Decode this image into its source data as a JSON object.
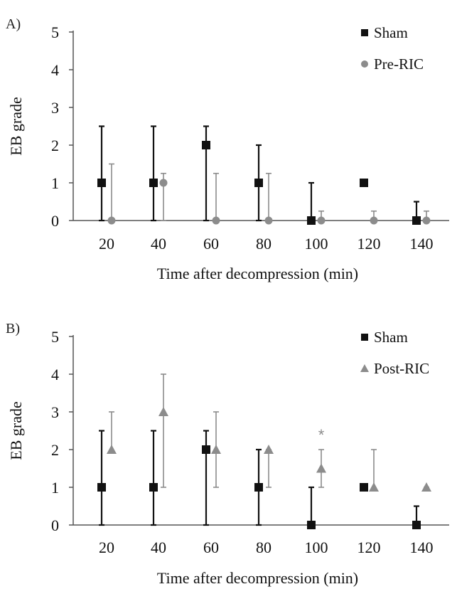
{
  "colors": {
    "sham": "#111111",
    "pre_ric": "#8c8c8c",
    "post_ric": "#8c8c8c",
    "axis": "#555555"
  },
  "chart_data": [
    {
      "panel_label": "A)",
      "type": "scatter",
      "x": [
        20,
        40,
        60,
        80,
        100,
        120,
        140
      ],
      "xlabel": "Time after decompression (min)",
      "ylabel": "EB grade",
      "ylim": [
        0,
        5
      ],
      "yticks": [
        0,
        1,
        2,
        3,
        4,
        5
      ],
      "xticks": [
        "20",
        "40",
        "60",
        "80",
        "100",
        "120",
        "140"
      ],
      "legend_position": "top-right",
      "grid": false,
      "series": [
        {
          "name": "Sham",
          "marker": "square",
          "color_key": "sham",
          "values": [
            1,
            1,
            2,
            1,
            0,
            1,
            0
          ],
          "error_upper": [
            2.5,
            2.5,
            2.5,
            2,
            1,
            1,
            0.5
          ],
          "error_lower": [
            0,
            0,
            0,
            0,
            0,
            1,
            0
          ]
        },
        {
          "name": "Pre-RIC",
          "marker": "circle",
          "color_key": "pre_ric",
          "values": [
            0,
            1,
            0,
            0,
            0,
            0,
            0
          ],
          "error_upper": [
            1.5,
            1.25,
            1.25,
            1.25,
            0.25,
            0.25,
            0.25
          ],
          "error_lower": [
            0,
            0,
            0,
            0,
            0,
            0,
            0
          ]
        }
      ],
      "annotations": []
    },
    {
      "panel_label": "B)",
      "type": "scatter",
      "x": [
        20,
        40,
        60,
        80,
        100,
        120,
        140
      ],
      "xlabel": "Time after decompression (min)",
      "ylabel": "EB grade",
      "ylim": [
        0,
        5
      ],
      "yticks": [
        0,
        1,
        2,
        3,
        4,
        5
      ],
      "xticks": [
        "20",
        "40",
        "60",
        "80",
        "100",
        "120",
        "140"
      ],
      "legend_position": "top-right",
      "grid": false,
      "series": [
        {
          "name": "Sham",
          "marker": "square",
          "color_key": "sham",
          "values": [
            1,
            1,
            2,
            1,
            0,
            1,
            0
          ],
          "error_upper": [
            2.5,
            2.5,
            2.5,
            2,
            1,
            1,
            0.5
          ],
          "error_lower": [
            0,
            0,
            0,
            0,
            0,
            1,
            0
          ]
        },
        {
          "name": "Post-RIC",
          "marker": "triangle",
          "color_key": "post_ric",
          "values": [
            2,
            3,
            2,
            2,
            1.5,
            1,
            1
          ],
          "error_upper": [
            3,
            4,
            3,
            2,
            2,
            2,
            1
          ],
          "error_lower": [
            2,
            1,
            1,
            1,
            1,
            1,
            1
          ]
        }
      ],
      "annotations": [
        {
          "text": "*",
          "x": 100,
          "y": 2.4,
          "series": "Post-RIC"
        }
      ]
    }
  ]
}
